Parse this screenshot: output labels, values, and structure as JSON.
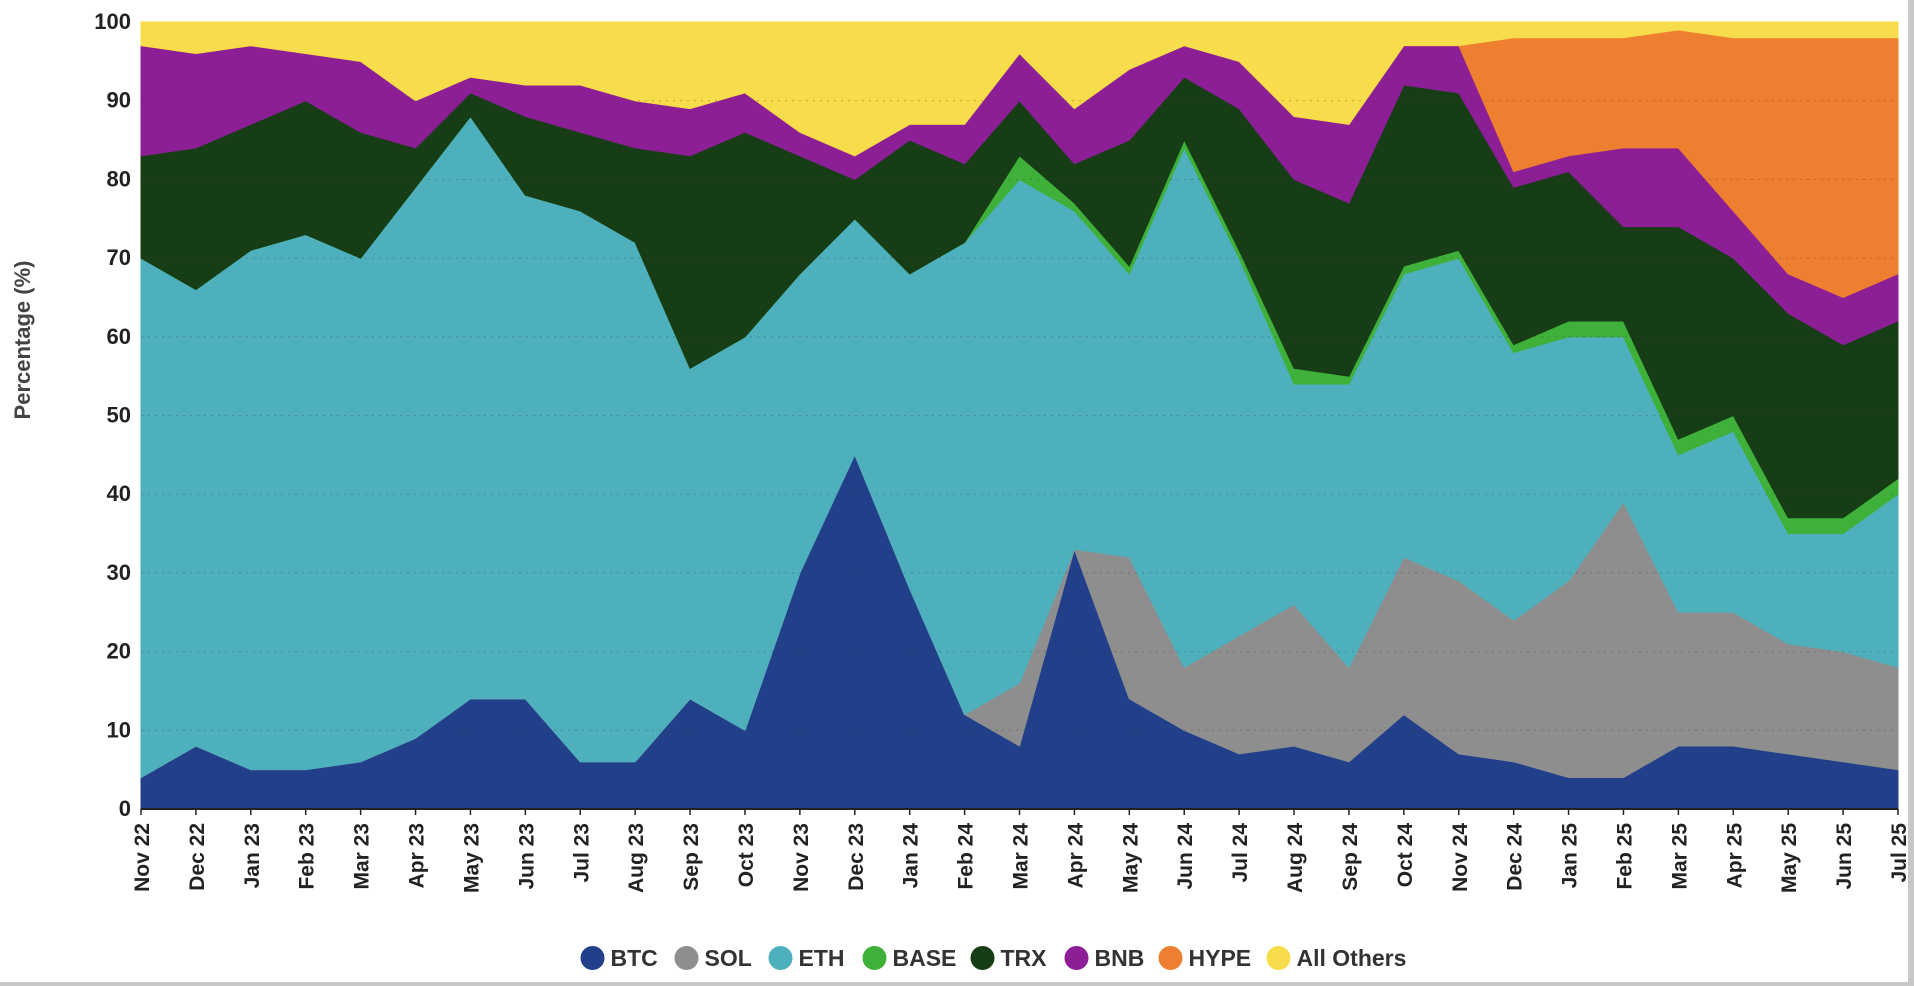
{
  "chart_data": {
    "type": "area",
    "stacked": true,
    "normalized_percent": true,
    "title": "",
    "xlabel": "",
    "ylabel": "Percentage (%)",
    "ylim": [
      0,
      100
    ],
    "yticks": [
      0,
      10,
      20,
      30,
      40,
      50,
      60,
      70,
      80,
      90,
      100
    ],
    "grid": true,
    "legend_position": "bottom",
    "x": [
      "Nov 22",
      "Dec 22",
      "Jan 23",
      "Feb 23",
      "Mar 23",
      "Apr 23",
      "May 23",
      "Jun 23",
      "Jul 23",
      "Aug 23",
      "Sep 23",
      "Oct 23",
      "Nov 23",
      "Dec 23",
      "Jan 24",
      "Feb 24",
      "Mar 24",
      "Apr 24",
      "May 24",
      "Jun 24",
      "Jul 24",
      "Aug 24",
      "Sep 24",
      "Oct 24",
      "Nov 24",
      "Dec 24",
      "Jan 25",
      "Feb 25",
      "Mar 25",
      "Apr 25",
      "May 25",
      "Jun 25",
      "Jul 25"
    ],
    "series": [
      {
        "name": "BTC",
        "color": "#22408a",
        "values": [
          4,
          8,
          5,
          5,
          6,
          9,
          14,
          14,
          6,
          6,
          14,
          10,
          30,
          45,
          28,
          12,
          8,
          33,
          14,
          10,
          7,
          8,
          6,
          12,
          7,
          6,
          4,
          4,
          8,
          8,
          7,
          6,
          5
        ]
      },
      {
        "name": "SOL",
        "color": "#8e8e8e",
        "values": [
          0,
          0,
          0,
          0,
          0,
          0,
          0,
          0,
          0,
          0,
          0,
          0,
          0,
          0,
          0,
          0,
          8,
          0,
          18,
          8,
          15,
          18,
          12,
          20,
          22,
          18,
          25,
          35,
          17,
          17,
          14,
          14,
          13
        ]
      },
      {
        "name": "ETH",
        "color": "#4fb0bd",
        "values": [
          66,
          58,
          66,
          68,
          64,
          70,
          74,
          64,
          70,
          66,
          42,
          50,
          38,
          30,
          40,
          60,
          64,
          43,
          36,
          66,
          48,
          28,
          36,
          36,
          41,
          34,
          31,
          21,
          20,
          23,
          14,
          15,
          22
        ]
      },
      {
        "name": "BASE",
        "color": "#3fb03a",
        "values": [
          0,
          0,
          0,
          0,
          0,
          0,
          0,
          0,
          0,
          0,
          0,
          0,
          0,
          0,
          0,
          0,
          3,
          1,
          1,
          1,
          1,
          2,
          1,
          1,
          1,
          1,
          2,
          2,
          2,
          2,
          2,
          2,
          2
        ]
      },
      {
        "name": "TRX",
        "color": "#163d15",
        "values": [
          13,
          18,
          16,
          17,
          16,
          5,
          3,
          10,
          10,
          12,
          27,
          26,
          15,
          5,
          17,
          10,
          7,
          5,
          16,
          8,
          18,
          24,
          22,
          23,
          20,
          20,
          19,
          12,
          27,
          20,
          26,
          22,
          20
        ]
      },
      {
        "name": "BNB",
        "color": "#8c1f96",
        "values": [
          14,
          12,
          10,
          6,
          9,
          6,
          2,
          4,
          6,
          6,
          6,
          5,
          3,
          3,
          2,
          5,
          6,
          7,
          9,
          4,
          6,
          8,
          10,
          5,
          6,
          2,
          2,
          10,
          10,
          6,
          5,
          6,
          6
        ]
      },
      {
        "name": "HYPE",
        "color": "#ef7f30",
        "values": [
          0,
          0,
          0,
          0,
          0,
          0,
          0,
          0,
          0,
          0,
          0,
          0,
          0,
          0,
          0,
          0,
          0,
          0,
          0,
          0,
          0,
          0,
          0,
          0,
          0,
          17,
          15,
          14,
          15,
          22,
          30,
          33,
          30
        ]
      },
      {
        "name": "All Others",
        "color": "#f7dc4b",
        "values": [
          3,
          4,
          3,
          4,
          5,
          10,
          7,
          8,
          8,
          10,
          11,
          9,
          14,
          17,
          13,
          13,
          4,
          11,
          6,
          3,
          5,
          12,
          13,
          3,
          3,
          2,
          2,
          2,
          1,
          2,
          2,
          2,
          2
        ]
      }
    ]
  }
}
